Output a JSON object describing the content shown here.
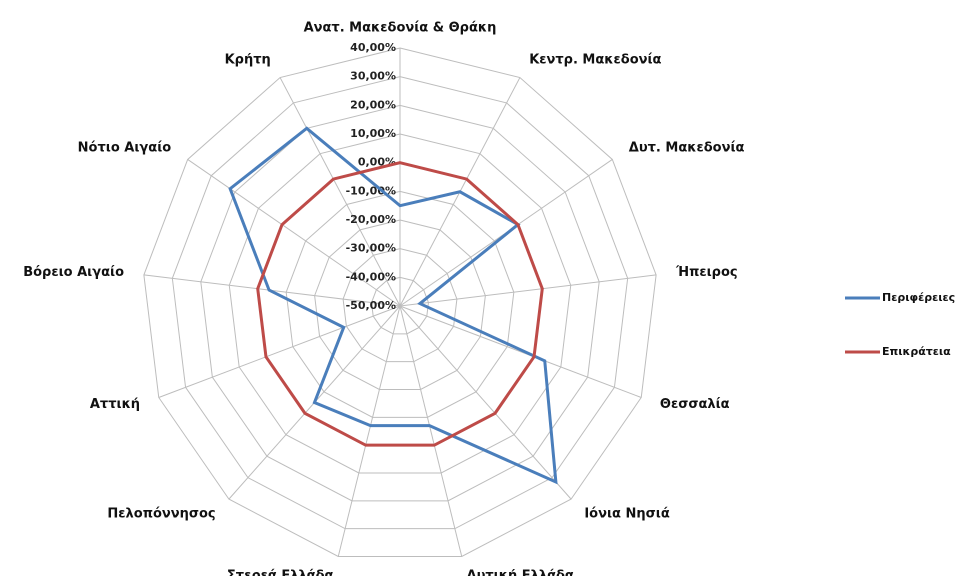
{
  "chart_data": {
    "type": "radar",
    "categories": [
      "Ανατ. Μακεδονία & Θράκη",
      "Κεντρ. Μακεδονία",
      "Δυτ. Μακεδονία",
      "Ήπειρος",
      "Θεσσαλία",
      "Ιόνια Νησιά",
      "Δυτική Ελλάδα",
      "Στερεά Ελλάδα",
      "Πελοπόννησος",
      "Αττική",
      "Βόρειο Αιγαίο",
      "Νότιο Αιγαίο",
      "Κρήτη"
    ],
    "series": [
      {
        "name": "Περιφέρειες",
        "color": "#4a7ebb",
        "values": [
          -15,
          -5,
          0,
          -43,
          4,
          32,
          -7,
          -7,
          -5,
          -29,
          -4,
          22,
          20
        ]
      },
      {
        "name": "Επικράτεια",
        "color": "#be4b48",
        "values": [
          0,
          0,
          0,
          0,
          0,
          0,
          0,
          0,
          0,
          0,
          0,
          0,
          0
        ]
      }
    ],
    "ylim": [
      -50,
      40
    ],
    "yticks": [
      {
        "value": 40,
        "label": "40,00%"
      },
      {
        "value": 30,
        "label": "30,00%"
      },
      {
        "value": 20,
        "label": "20,00%"
      },
      {
        "value": 10,
        "label": "10,00%"
      },
      {
        "value": 0,
        "label": "0,00%"
      },
      {
        "value": -10,
        "label": "-10,00%"
      },
      {
        "value": -20,
        "label": "-20,00%"
      },
      {
        "value": -30,
        "label": "-30,00%"
      },
      {
        "value": -40,
        "label": "-40,00%"
      },
      {
        "value": -50,
        "label": "-50,00%"
      }
    ],
    "grid": true,
    "legend": "right"
  }
}
